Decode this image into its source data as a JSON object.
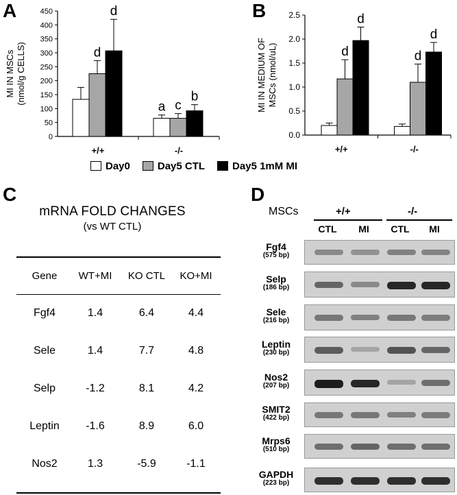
{
  "panels": {
    "a": "A",
    "b": "B",
    "c": "C",
    "d": "D"
  },
  "chart_data": [
    {
      "type": "bar",
      "ylabel": "MI IN MSCs\n(nmol/g CELLS)",
      "ylim": [
        0,
        450
      ],
      "yticks": [
        0,
        50,
        100,
        150,
        200,
        250,
        300,
        350,
        400,
        450
      ],
      "categories": [
        "+/+",
        "-/-"
      ],
      "series": [
        {
          "name": "Day0",
          "values": [
            133,
            65
          ],
          "errors": [
            43,
            12
          ],
          "labels": [
            "",
            "a"
          ]
        },
        {
          "name": "Day5 CTL",
          "values": [
            225,
            65
          ],
          "errors": [
            47,
            17
          ],
          "labels": [
            "d",
            "c"
          ]
        },
        {
          "name": "Day5 1mM MI",
          "values": [
            307,
            92
          ],
          "errors": [
            113,
            22
          ],
          "labels": [
            "d",
            "b"
          ]
        }
      ]
    },
    {
      "type": "bar",
      "ylabel": "MI IN MEDIUM OF\nMSCs (nmol/uL)",
      "ylim": [
        0,
        2.5
      ],
      "yticks": [
        "0.0",
        "0.5",
        "1.0",
        "1.5",
        "2.0",
        "2.5"
      ],
      "categories": [
        "+/+",
        "-/-"
      ],
      "series": [
        {
          "name": "Day0",
          "values": [
            0.2,
            0.18
          ],
          "errors": [
            0.05,
            0.05
          ],
          "labels": [
            "",
            ""
          ]
        },
        {
          "name": "Day5 CTL",
          "values": [
            1.17,
            1.1
          ],
          "errors": [
            0.4,
            0.38
          ],
          "labels": [
            "d",
            "d"
          ]
        },
        {
          "name": "Day5 1mM MI",
          "values": [
            1.97,
            1.73
          ],
          "errors": [
            0.28,
            0.2
          ],
          "labels": [
            "d",
            "d"
          ]
        }
      ]
    },
    {
      "type": "table",
      "title": "mRNA FOLD CHANGES",
      "subtitle": "(vs WT CTL)",
      "columns": [
        "Gene",
        "WT+MI",
        "KO CTL",
        "KO+MI"
      ],
      "rows": [
        [
          "Fgf4",
          "1.4",
          "6.4",
          "4.4"
        ],
        [
          "Sele",
          "1.4",
          "7.7",
          "4.8"
        ],
        [
          "Selp",
          "-1.2",
          "8.1",
          "4.2"
        ],
        [
          "Leptin",
          "-1.6",
          "8.9",
          "6.0"
        ],
        [
          "Nos2",
          "1.3",
          "-5.9",
          "-1.1"
        ]
      ]
    }
  ],
  "legend": [
    "Day0",
    "Day5 CTL",
    "Day5 1mM MI"
  ],
  "series_colors": [
    "#ffffff",
    "#a6a6a6",
    "#000000"
  ],
  "gel": {
    "header_label": "MSCs",
    "groups": [
      "+/+",
      "-/-"
    ],
    "lanes": [
      "CTL",
      "MI",
      "CTL",
      "MI"
    ],
    "rows": [
      {
        "gene": "Fgf4",
        "size": "(575 bp)",
        "intensity": [
          0.35,
          0.3,
          0.4,
          0.38
        ]
      },
      {
        "gene": "Selp",
        "size": "(186 bp)",
        "intensity": [
          0.55,
          0.35,
          0.9,
          0.9
        ]
      },
      {
        "gene": "Sele",
        "size": "(216 bp)",
        "intensity": [
          0.45,
          0.4,
          0.45,
          0.42
        ]
      },
      {
        "gene": "Leptin",
        "size": "(230 bp)",
        "intensity": [
          0.6,
          0.2,
          0.65,
          0.55
        ]
      },
      {
        "gene": "Nos2",
        "size": "(207 bp)",
        "intensity": [
          0.95,
          0.9,
          0.2,
          0.5
        ]
      },
      {
        "gene": "SMIT2",
        "size": "(422 bp)",
        "intensity": [
          0.45,
          0.45,
          0.4,
          0.42
        ]
      },
      {
        "gene": "Mrps6",
        "size": "(510 bp)",
        "intensity": [
          0.5,
          0.55,
          0.5,
          0.5
        ]
      },
      {
        "gene": "GAPDH",
        "size": "(223 bp)",
        "intensity": [
          0.85,
          0.85,
          0.85,
          0.85
        ]
      }
    ]
  }
}
